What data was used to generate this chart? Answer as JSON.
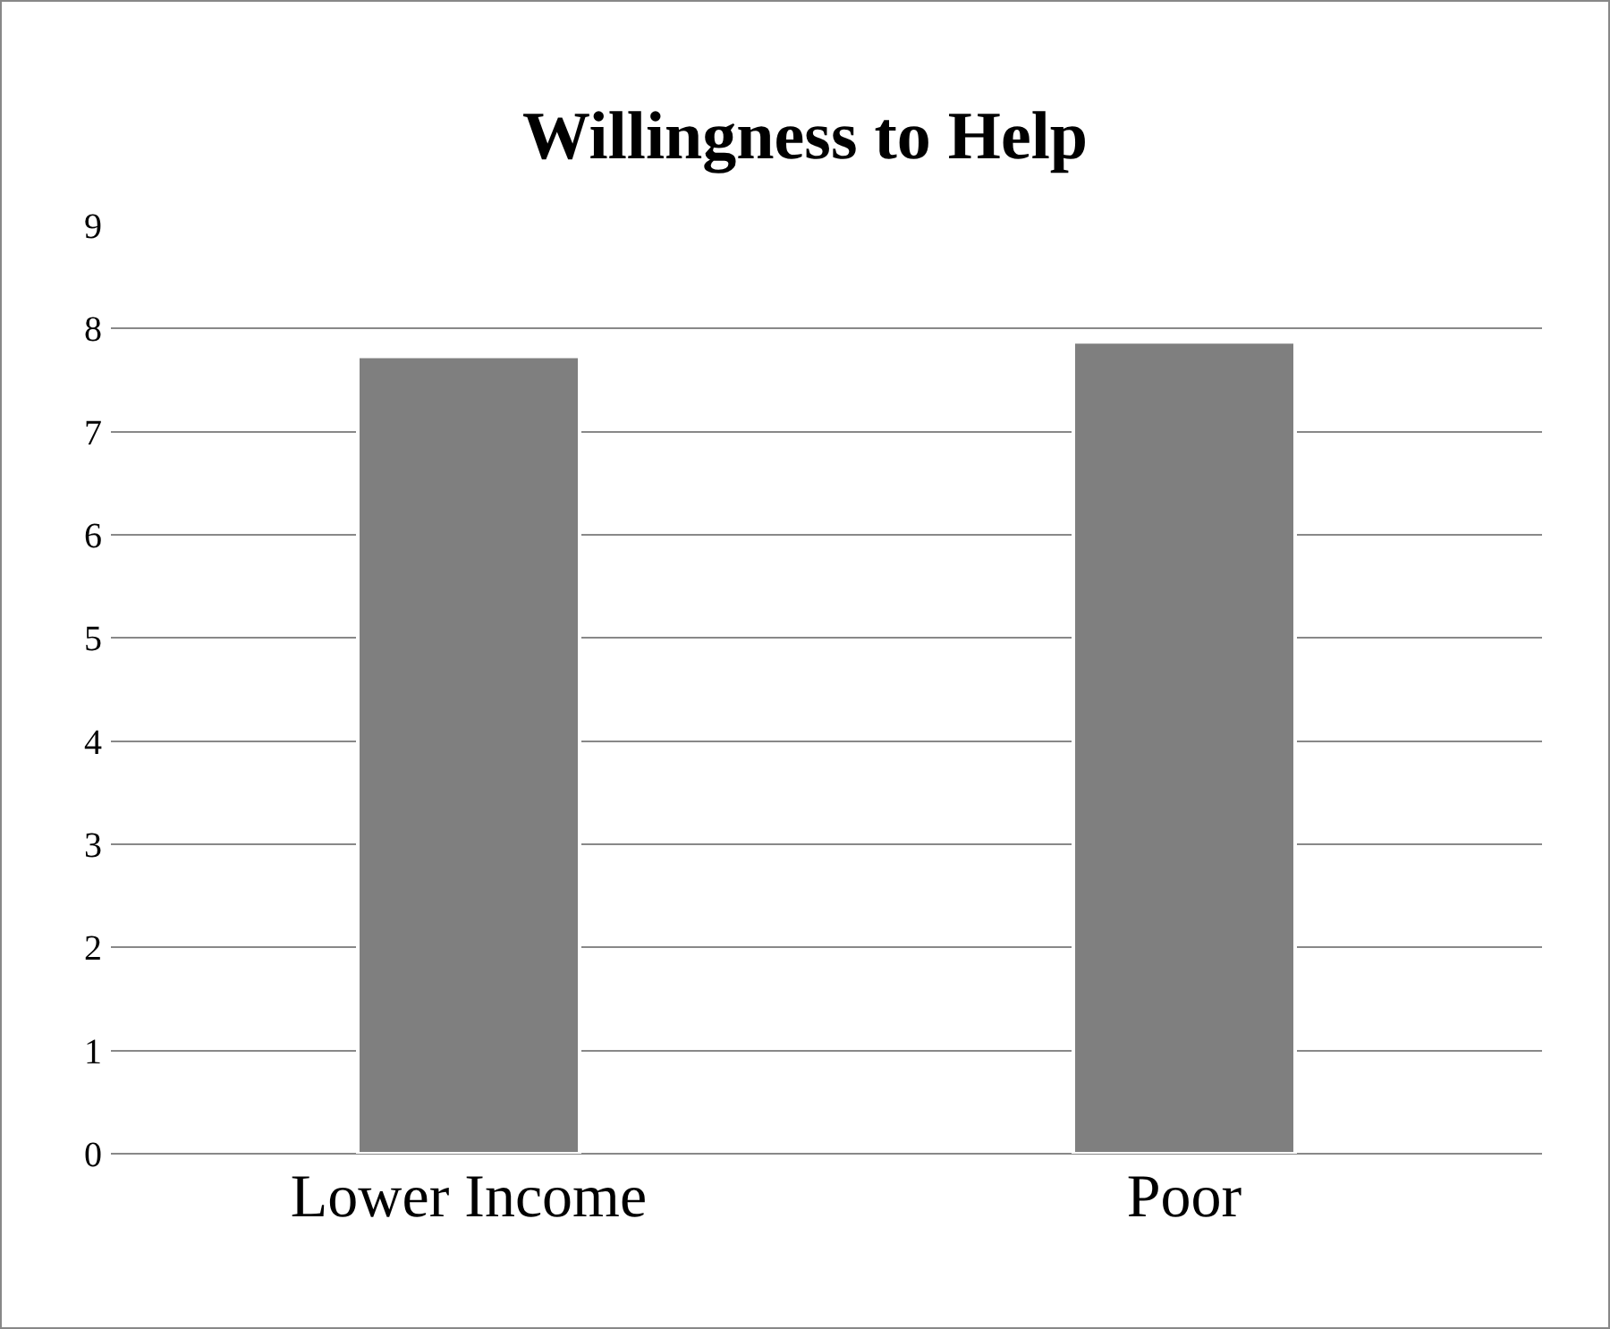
{
  "chart_data": {
    "type": "bar",
    "title": "Willingness to Help",
    "categories": [
      "Lower Income",
      "Poor"
    ],
    "values": [
      7.73,
      7.87
    ],
    "color": "#7f7f7f",
    "ylim": [
      0,
      9
    ],
    "yticks": [
      0,
      1,
      2,
      3,
      4,
      5,
      6,
      7,
      8,
      9
    ],
    "grid": "y"
  }
}
